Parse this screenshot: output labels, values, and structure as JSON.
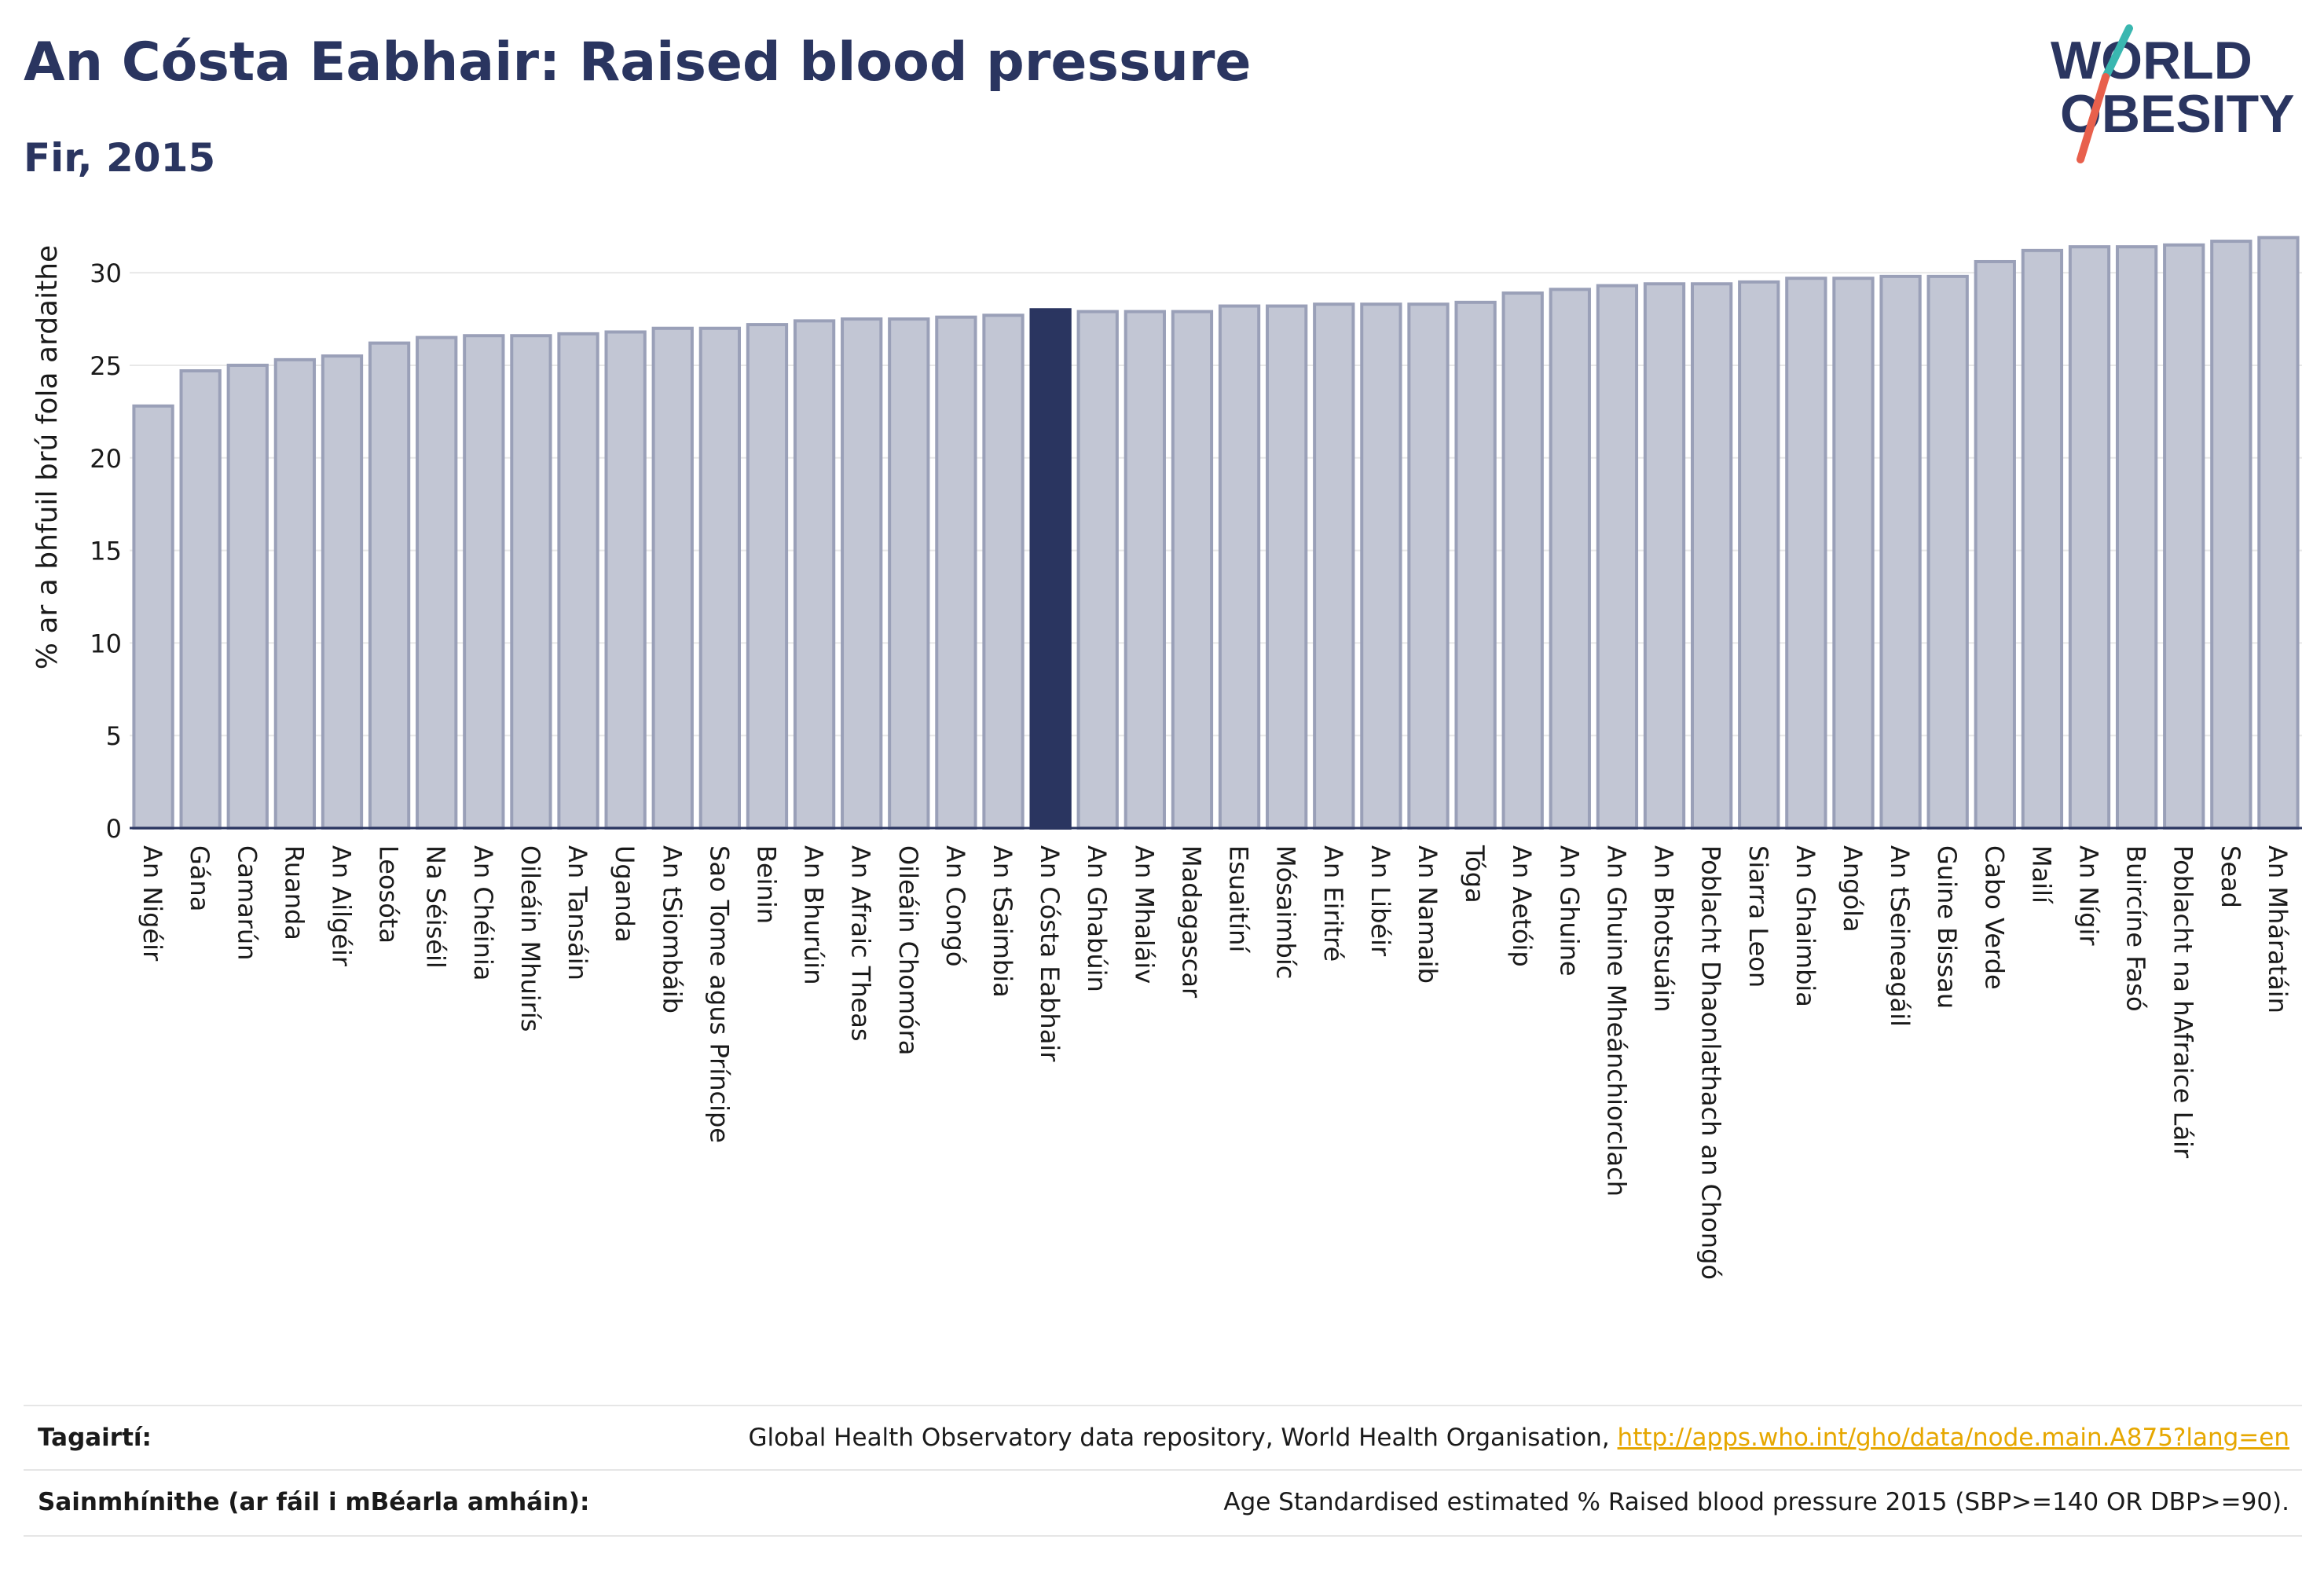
{
  "header": {
    "title": "An Cósta Eabhair: Raised blood pressure",
    "subtitle": "Fir, 2015"
  },
  "logo": {
    "line1": "WORLD",
    "line2": "OBESITY"
  },
  "colors": {
    "bar": "#c2c6d4",
    "bar_outline": "#9aa0b8",
    "highlight": "#2a3560",
    "text": "#2a3560",
    "grid": "#e8e8e8",
    "link": "#e6a700"
  },
  "chart_data": {
    "type": "bar",
    "ylabel": "% ar a bhfuil brú fola ardaithe",
    "ylim": [
      0,
      32
    ],
    "yticks": [
      0,
      5,
      10,
      15,
      20,
      25,
      30
    ],
    "grid": true,
    "highlight": "An Cósta Eabhair",
    "categories": [
      "An Nigéir",
      "Gána",
      "Camarún",
      "Ruanda",
      "An Ailgéir",
      "Leosóta",
      "Na Séiséil",
      "An Chéinia",
      "Oileáin Mhuirís",
      "An Tansáin",
      "Uganda",
      "An tSiombáib",
      "Sao Tome agus Príncipe",
      "Beinin",
      "An Bhurúin",
      "An Afraic Theas",
      "Oileáin Chomóra",
      "An Congó",
      "An tSaimbia",
      "An Cósta Eabhair",
      "An Ghabúin",
      "An Mhaláiv",
      "Madagascar",
      "Esuaitíní",
      "Mósaimbíc",
      "An Eiritré",
      "An Libéir",
      "An Namaib",
      "Tóga",
      "An Aetóip",
      "An Ghuine",
      "An Ghuine Mheánchiorclach",
      "An Bhotsuáin",
      "Poblacht Dhaonlathach an Chongó",
      "Siarra Leon",
      "An Ghaimbia",
      "Angóla",
      "An tSeineagáil",
      "Guine Bissau",
      "Cabo Verde",
      "Mailí",
      "An Nígir",
      "Buircíne Fasó",
      "Poblacht na hAfraice Láir",
      "Sead",
      "An Mháratáin"
    ],
    "values": [
      22.8,
      24.7,
      25.0,
      25.3,
      25.5,
      26.2,
      26.5,
      26.6,
      26.6,
      26.7,
      26.8,
      27.0,
      27.0,
      27.2,
      27.4,
      27.5,
      27.5,
      27.6,
      27.7,
      28.0,
      27.9,
      27.9,
      27.9,
      28.2,
      28.2,
      28.3,
      28.3,
      28.3,
      28.4,
      28.9,
      29.1,
      29.3,
      29.4,
      29.4,
      29.5,
      29.7,
      29.7,
      29.8,
      29.8,
      30.6,
      31.2,
      31.4,
      31.4,
      31.5,
      31.7,
      31.9
    ]
  },
  "references": {
    "sources_label": "Tagairtí:",
    "sources_text": "Global Health Observatory data repository, World Health Organisation,",
    "sources_link": "http://apps.who.int/gho/data/node.main.A875?lang=en",
    "definitions_label": "Sainmhínithe (ar fáil i mBéarla amháin):",
    "definitions_text": "Age Standardised estimated % Raised blood pressure 2015 (SBP>=140 OR DBP>=90)."
  }
}
